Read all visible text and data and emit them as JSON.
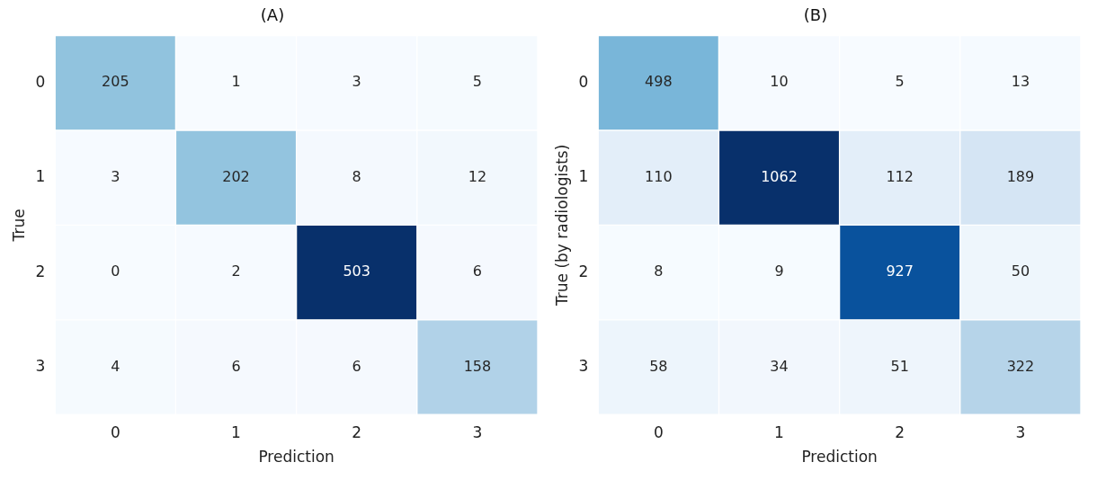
{
  "chart_data": [
    {
      "type": "heatmap",
      "data_labels": true,
      "title": "(A)",
      "xlabel": "Prediction",
      "ylabel": "True",
      "categories": [
        "0",
        "1",
        "2",
        "3"
      ],
      "y_categories": [
        "0",
        "1",
        "2",
        "3"
      ],
      "cells": [
        [
          205,
          1,
          3,
          5
        ],
        [
          3,
          202,
          8,
          12
        ],
        [
          0,
          2,
          503,
          6
        ],
        [
          4,
          6,
          6,
          158
        ]
      ]
    },
    {
      "type": "heatmap",
      "data_labels": true,
      "title": "(B)",
      "xlabel": "Prediction",
      "ylabel": "True (by radiologists)",
      "categories": [
        "0",
        "1",
        "2",
        "3"
      ],
      "y_categories": [
        "0",
        "1",
        "2",
        "3"
      ],
      "cells": [
        [
          498,
          10,
          5,
          13
        ],
        [
          110,
          1062,
          112,
          189
        ],
        [
          8,
          9,
          927,
          50
        ],
        [
          58,
          34,
          51,
          322
        ]
      ]
    }
  ]
}
